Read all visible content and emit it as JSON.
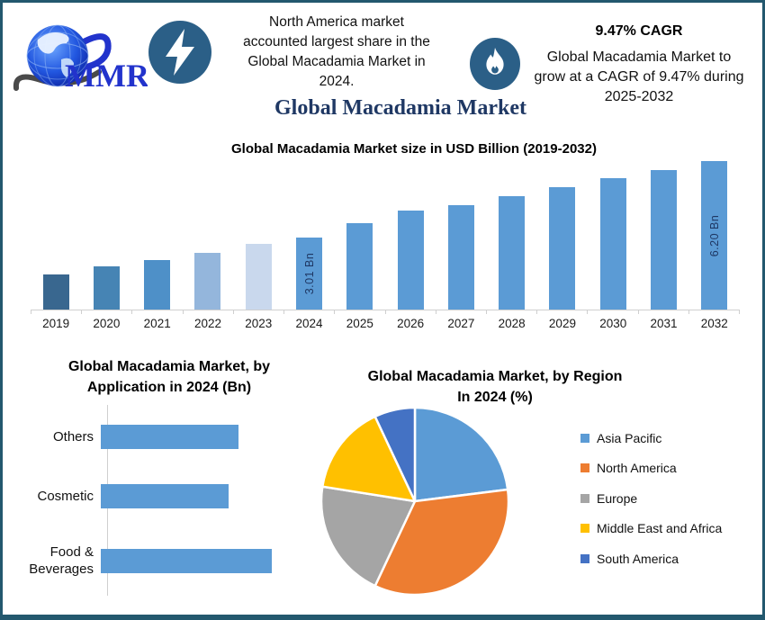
{
  "frame": {
    "border_color": "#23586E"
  },
  "header": {
    "logo_text": "MMR",
    "bolt_icon_color": "#2B5F87",
    "flame_icon_color": "#2B5F87",
    "headline_lines": [
      "North America market",
      "accounted largest share in the",
      "Global Macadamia Market in",
      "2024."
    ],
    "title": "Global Macadamia Market",
    "title_color": "#1F3864",
    "cagr": {
      "headline": "9.47% CAGR",
      "lines": [
        "Global Macadamia Market to",
        "grow at a CAGR of 9.47% during",
        "2025-2032"
      ]
    }
  },
  "chart_data": [
    {
      "type": "bar",
      "title": "Global Macadamia Market size in USD Billion (2019-2032)",
      "categories": [
        "2019",
        "2020",
        "2021",
        "2022",
        "2023",
        "2024",
        "2025",
        "2026",
        "2027",
        "2028",
        "2029",
        "2030",
        "2031",
        "2032"
      ],
      "values": [
        1.47,
        1.8,
        2.05,
        2.35,
        2.73,
        3.01,
        3.62,
        4.15,
        4.35,
        4.72,
        5.1,
        5.48,
        5.82,
        6.2
      ],
      "unit": "USD Billion",
      "ylim": [
        0,
        6.2
      ],
      "grid": false,
      "bar_labels": {
        "2024": "3.01 Bn",
        "2032": "6.20 Bn"
      },
      "bar_colors": {
        "2019": "#39678F",
        "2020": "#4684B4",
        "2021": "#4E90C8",
        "2022": "#94B6DC",
        "2023": "#C9D8ED",
        "default": "#5B9BD5"
      }
    },
    {
      "type": "bar",
      "orientation": "horizontal",
      "title": "Global Macadamia Market, by Application in 2024 (Bn)",
      "title_lines": [
        "Global Macadamia Market, by",
        "Application in 2024 (Bn)"
      ],
      "categories": [
        "Others",
        "Cosmetic",
        "Food & Beverages"
      ],
      "values": [
        0.95,
        0.88,
        1.18
      ],
      "unit": "Bn",
      "bar_color": "#5B9BD5",
      "grid": false
    },
    {
      "type": "pie",
      "title": "Global Macadamia Market, by Region In 2024 (%)",
      "title_lines": [
        "Global Macadamia Market, by Region",
        "In 2024 (%)"
      ],
      "labels": [
        "Asia Pacific",
        "North America",
        "Europe",
        "Middle East and Africa",
        "South America"
      ],
      "values": [
        23,
        34,
        20.5,
        15.5,
        7
      ],
      "colors": [
        "#5B9BD5",
        "#ED7D31",
        "#A5A5A5",
        "#FFC000",
        "#4472C4"
      ],
      "legend_position": "right",
      "start_angle_deg": 0,
      "direction": "clockwise"
    }
  ]
}
